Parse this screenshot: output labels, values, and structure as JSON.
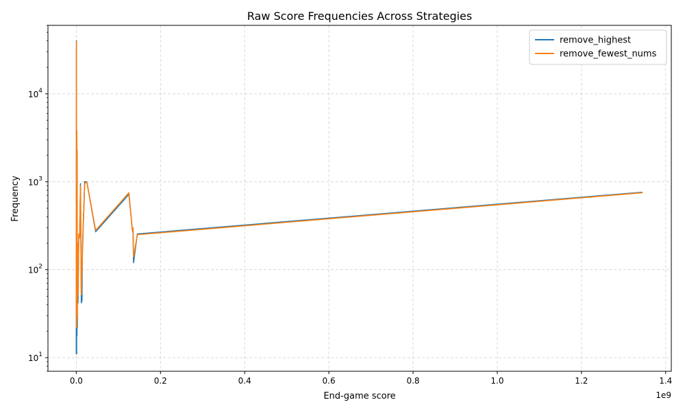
{
  "chart_data": {
    "type": "line",
    "title": "Raw Score Frequencies Across Strategies",
    "xlabel": "End-game score",
    "ylabel": "Frequency",
    "x_offset_label": "1e9",
    "xlim": [
      -0.0673,
      1.4134
    ],
    "ylim": [
      7.0,
      60000
    ],
    "yscale": "log",
    "x_ticks": [
      0,
      0.2,
      0.4,
      0.6,
      0.8,
      1.0,
      1.2,
      1.4
    ],
    "x_tick_labels": [
      "0.0",
      "0.2",
      "0.4",
      "0.6",
      "0.8",
      "1.0",
      "1.2",
      "1.4"
    ],
    "y_ticks": [
      {
        "value": 10,
        "base": "10",
        "exp": "1"
      },
      {
        "value": 100,
        "base": "10",
        "exp": "2"
      },
      {
        "value": 1000,
        "base": "10",
        "exp": "3"
      },
      {
        "value": 10000,
        "base": "10",
        "exp": "4"
      }
    ],
    "grid": true,
    "legend_position": "top-right",
    "series": [
      {
        "name": "remove_highest",
        "color": "#1f77b4",
        "x": [
          0.0,
          0.0004,
          0.0008,
          0.0012,
          0.0016,
          0.002,
          0.0024,
          0.003,
          0.004,
          0.006,
          0.008,
          0.01,
          0.012,
          0.0135,
          0.0145,
          0.016,
          0.02,
          0.025,
          0.046,
          0.125,
          0.133,
          0.135,
          0.136,
          0.145,
          1.345
        ],
        "y": [
          11,
          40000,
          11,
          3800,
          18,
          2300,
          22,
          200,
          42,
          250,
          240,
          950,
          42,
          45,
          180,
          270,
          1000,
          1000,
          270,
          720,
          290,
          260,
          120,
          255,
          760
        ]
      },
      {
        "name": "remove_fewest_nums",
        "color": "#ff7f0e",
        "x": [
          0.0,
          0.0004,
          0.0008,
          0.0012,
          0.0016,
          0.002,
          0.0024,
          0.003,
          0.004,
          0.006,
          0.008,
          0.01,
          0.012,
          0.0135,
          0.0145,
          0.016,
          0.02,
          0.025,
          0.046,
          0.125,
          0.133,
          0.135,
          0.136,
          0.145,
          1.345
        ],
        "y": [
          22,
          39000,
          22,
          3600,
          28,
          2300,
          30,
          200,
          52,
          255,
          230,
          900,
          52,
          100,
          140,
          250,
          950,
          1000,
          280,
          750,
          280,
          300,
          140,
          250,
          750
        ]
      }
    ]
  }
}
